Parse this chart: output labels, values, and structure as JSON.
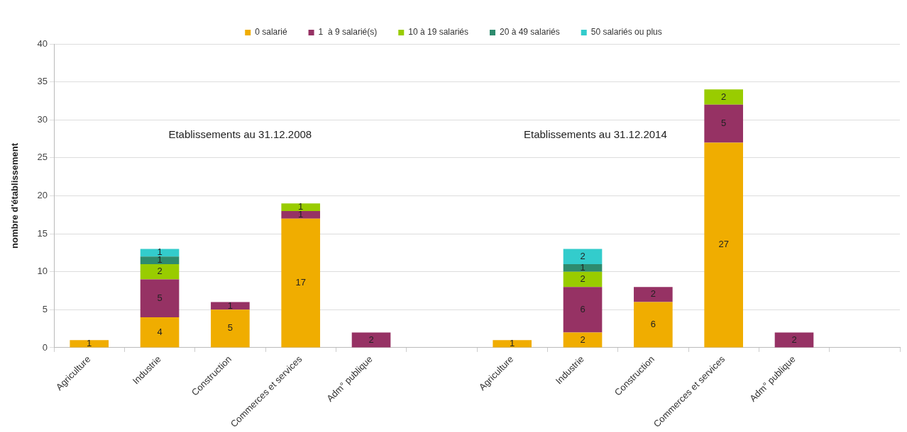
{
  "chart_data": {
    "type": "bar",
    "stacked": true,
    "ylabel": "nombre d'établissement",
    "categories": [
      "Agriculture",
      "Industrie",
      "Construction",
      "Commerces et services",
      "Adm° publique",
      null,
      "Agriculture",
      "Industrie",
      "Construction",
      "Commerces et services",
      "Adm° publique",
      null
    ],
    "series": [
      {
        "name": "0 salarié",
        "color": "#f0ad00",
        "values": [
          1,
          4,
          5,
          17,
          null,
          null,
          1,
          2,
          6,
          27,
          null,
          null
        ]
      },
      {
        "name": "1  à 9 salarié(s)",
        "color": "#963264",
        "values": [
          null,
          5,
          1,
          1,
          2,
          null,
          null,
          6,
          2,
          5,
          2,
          null
        ]
      },
      {
        "name": "10 à 19 salariés",
        "color": "#99cc00",
        "values": [
          null,
          2,
          null,
          1,
          null,
          null,
          null,
          2,
          null,
          2,
          null,
          null
        ]
      },
      {
        "name": "20 à 49 salariés",
        "color": "#2e8b6e",
        "values": [
          null,
          1,
          null,
          null,
          null,
          null,
          null,
          1,
          null,
          null,
          null,
          null
        ]
      },
      {
        "name": "50 salariés ou plus",
        "color": "#33cccc",
        "values": [
          null,
          1,
          null,
          null,
          null,
          null,
          null,
          2,
          null,
          null,
          null,
          null
        ]
      }
    ],
    "ylim": [
      0,
      40
    ],
    "yticks": [
      0,
      5,
      10,
      15,
      20,
      25,
      30,
      35,
      40
    ],
    "grid": "y",
    "legend": "top",
    "data_labels": true,
    "annotations": [
      "Etablissements au 31.12.2008",
      "Etablissements au 31.12.2014"
    ]
  }
}
